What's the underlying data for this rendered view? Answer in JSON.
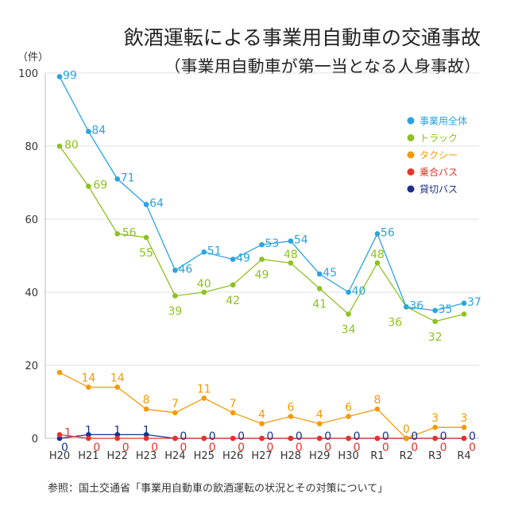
{
  "chart_data": {
    "type": "line",
    "title": "飲酒運転による事業用自動車の交通事故",
    "subtitle": "（事業用自動車が第一当となる人身事故）",
    "ylabel": "（件）",
    "xlabel": "",
    "ylim": [
      0,
      100
    ],
    "yticks": [
      0,
      20,
      40,
      60,
      80,
      100
    ],
    "grid": true,
    "legend_position": "right",
    "categories": [
      "H20",
      "H21",
      "H22",
      "H23",
      "H24",
      "H25",
      "H26",
      "H27",
      "H28",
      "H29",
      "H30",
      "R1",
      "R2",
      "R3",
      "R4"
    ],
    "series": [
      {
        "name": "事業用全体",
        "color": "#2aa3e0",
        "values": [
          99,
          84,
          71,
          64,
          46,
          51,
          49,
          53,
          54,
          45,
          40,
          56,
          36,
          35,
          37
        ],
        "labels": [
          true,
          true,
          true,
          true,
          true,
          true,
          true,
          true,
          true,
          true,
          true,
          true,
          true,
          true,
          true
        ]
      },
      {
        "name": "トラック",
        "color": "#8cc21f",
        "values": [
          80,
          69,
          56,
          55,
          39,
          40,
          42,
          49,
          48,
          41,
          34,
          48,
          36,
          32,
          34
        ],
        "labels": [
          true,
          true,
          true,
          true,
          true,
          true,
          true,
          true,
          true,
          true,
          true,
          true,
          true,
          true,
          false
        ]
      },
      {
        "name": "タクシー",
        "color": "#f39a0b",
        "values": [
          18,
          14,
          14,
          8,
          7,
          11,
          7,
          4,
          6,
          4,
          6,
          8,
          0,
          3,
          3
        ],
        "labels": [
          false,
          true,
          true,
          true,
          true,
          true,
          true,
          true,
          true,
          true,
          true,
          true,
          true,
          true,
          true
        ]
      },
      {
        "name": "乗合バス",
        "color": "#e8322b",
        "values": [
          1,
          0,
          0,
          0,
          0,
          0,
          0,
          0,
          0,
          0,
          0,
          0,
          0,
          0,
          0
        ],
        "labels": [
          true,
          true,
          true,
          true,
          true,
          true,
          true,
          true,
          true,
          true,
          true,
          true,
          true,
          true,
          true
        ]
      },
      {
        "name": "貸切バス",
        "color": "#1c2f8c",
        "values": [
          0,
          1,
          1,
          1,
          0,
          0,
          0,
          0,
          0,
          0,
          0,
          0,
          0,
          0,
          0
        ],
        "labels": [
          true,
          true,
          true,
          true,
          true,
          true,
          true,
          true,
          true,
          true,
          true,
          true,
          true,
          true,
          true
        ]
      }
    ]
  },
  "source": "参照：国土交通省「事業用自動車の飲酒運転の状況とその対策について」"
}
